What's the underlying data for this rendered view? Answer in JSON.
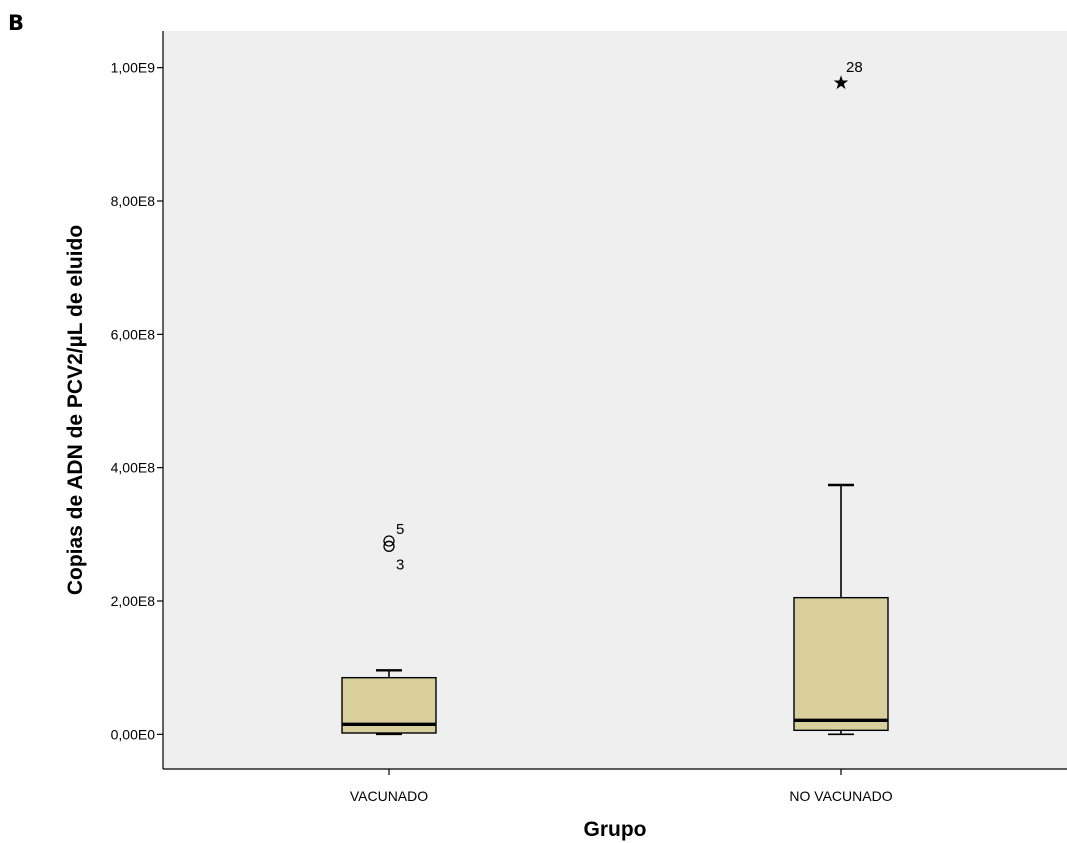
{
  "panel_label": "B",
  "chart_data": {
    "type": "boxplot",
    "title": "",
    "xlabel": "Grupo",
    "ylabel": "Copias de ADN de PCV2/µL de eluido",
    "categories": [
      "VACUNADO",
      "NO VACUNADO"
    ],
    "ylim": [
      -52000000,
      1055000000
    ],
    "y_ticks": [
      0,
      200000000,
      400000000,
      600000000,
      800000000,
      1000000000
    ],
    "y_tick_labels": [
      "0,00E0",
      "2,00E8",
      "4,00E8",
      "6,00E8",
      "8,00E8",
      "1,00E9"
    ],
    "grid": false,
    "legend": "none",
    "colors": {
      "plot_background": "#efefef",
      "box_fill": "#d8cf9c",
      "stroke": "#000000"
    },
    "boxes": [
      {
        "category": "VACUNADO",
        "whisker_low": 0,
        "q1": 2000000,
        "median": 15000000,
        "q3": 85000000,
        "whisker_high": 96000000,
        "outliers": [
          {
            "label": "5",
            "value": 290000000,
            "symbol": "circle"
          },
          {
            "label": "3",
            "value": 282000000,
            "symbol": "circle"
          }
        ]
      },
      {
        "category": "NO VACUNADO",
        "whisker_low": 0,
        "q1": 6000000,
        "median": 21000000,
        "q3": 205000000,
        "whisker_high": 374000000,
        "outliers": [
          {
            "label": "28",
            "value": 980000000,
            "symbol": "star"
          }
        ]
      }
    ]
  }
}
